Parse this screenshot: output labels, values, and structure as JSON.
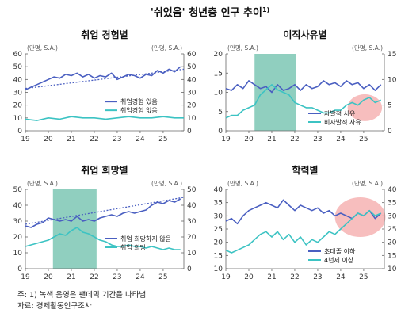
{
  "figure": {
    "title": "'쉬었음' 청년층 인구 추이",
    "title_sup": "1)",
    "notes": [
      "주: 1) 녹색 음영은 팬데믹 기간을 나타냄",
      "자료: 경제활동인구조사"
    ]
  },
  "colors": {
    "series_primary": "#4a5fc1",
    "series_secondary": "#3cc3c3",
    "trend": "#4a5fc1",
    "shade": "#7cc7b4",
    "highlight": "#f4a3a3"
  },
  "chart_data": [
    {
      "type": "line",
      "title": "취업 경험별",
      "unit_left": "(만명, S.A.)",
      "unit_right": "(만명, S.A.)",
      "x_ticks": [
        "19",
        "20",
        "21",
        "22",
        "23",
        "24",
        "25"
      ],
      "xlim": [
        2019,
        2025.9
      ],
      "ylim": [
        0,
        60
      ],
      "yticks": [
        0,
        10,
        20,
        30,
        40,
        50,
        60
      ],
      "y2lim": [
        0,
        60
      ],
      "y2ticks": [
        0,
        10,
        20,
        30,
        40,
        50,
        60
      ],
      "trend": {
        "series": 0,
        "from": [
          2019.0,
          33
        ],
        "to": [
          2025.9,
          48
        ]
      },
      "legend": "center-right",
      "series": [
        {
          "name": "취업경험 있음",
          "axis": "left",
          "color": "#4a5fc1",
          "x": [
            2019.0,
            2019.25,
            2019.5,
            2019.75,
            2020.0,
            2020.25,
            2020.5,
            2020.75,
            2021.0,
            2021.25,
            2021.5,
            2021.75,
            2022.0,
            2022.25,
            2022.5,
            2022.75,
            2023.0,
            2023.25,
            2023.5,
            2023.75,
            2024.0,
            2024.25,
            2024.5,
            2024.75,
            2025.0,
            2025.25,
            2025.5,
            2025.75
          ],
          "y": [
            32,
            34,
            36,
            38,
            40,
            42,
            41,
            44,
            43,
            45,
            42,
            44,
            41,
            43,
            42,
            45,
            40,
            42,
            44,
            43,
            41,
            44,
            43,
            47,
            45,
            48,
            46,
            50
          ]
        },
        {
          "name": "취업경험 없음",
          "axis": "left",
          "color": "#3cc3c3",
          "x": [
            2019.0,
            2019.5,
            2020.0,
            2020.5,
            2021.0,
            2021.5,
            2022.0,
            2022.5,
            2023.0,
            2023.5,
            2024.0,
            2024.5,
            2025.0,
            2025.5,
            2025.9
          ],
          "y": [
            9,
            8,
            10,
            9,
            11,
            10,
            10,
            9,
            10,
            11,
            10,
            10,
            11,
            10,
            10
          ]
        }
      ]
    },
    {
      "type": "line",
      "title": "이직사유별",
      "unit_left": "(만명, S.A.)",
      "unit_right": "(만명, S.A.)",
      "x_ticks": [
        "19",
        "20",
        "21",
        "22",
        "23",
        "24",
        "25"
      ],
      "xlim": [
        2019,
        2025.9
      ],
      "ylim": [
        0,
        20
      ],
      "yticks": [
        0,
        5,
        10,
        15,
        20
      ],
      "y2lim": [
        0,
        15
      ],
      "y2ticks": [
        0,
        5,
        10,
        15
      ],
      "shade": [
        2020.25,
        2022.05
      ],
      "highlight": {
        "center": [
          2025.05,
          6.0
        ],
        "rx_years": 0.75,
        "ry_units": 3.5
      },
      "legend": "bottom-right",
      "series": [
        {
          "name": "자발적 사유",
          "axis": "left",
          "color": "#4a5fc1",
          "x": [
            2019.0,
            2019.25,
            2019.5,
            2019.75,
            2020.0,
            2020.25,
            2020.5,
            2020.75,
            2021.0,
            2021.25,
            2021.5,
            2021.75,
            2022.0,
            2022.25,
            2022.5,
            2022.75,
            2023.0,
            2023.25,
            2023.5,
            2023.75,
            2024.0,
            2024.25,
            2024.5,
            2024.75,
            2025.0,
            2025.25,
            2025.5,
            2025.75
          ],
          "y": [
            11,
            10.5,
            12,
            11,
            13,
            12,
            11,
            11.5,
            10,
            12,
            10.5,
            11,
            12,
            10.5,
            12,
            11,
            11.5,
            13,
            12,
            12.5,
            11.5,
            13,
            12,
            12.5,
            11,
            12,
            10.5,
            12
          ]
        },
        {
          "name": "비자발적 사유",
          "axis": "right",
          "color": "#3cc3c3",
          "x": [
            2019.0,
            2019.25,
            2019.5,
            2019.75,
            2020.0,
            2020.25,
            2020.5,
            2020.75,
            2021.0,
            2021.25,
            2021.5,
            2021.75,
            2022.0,
            2022.25,
            2022.5,
            2022.75,
            2023.0,
            2023.25,
            2023.5,
            2023.75,
            2024.0,
            2024.25,
            2024.5,
            2024.75,
            2025.0,
            2025.25,
            2025.5,
            2025.75
          ],
          "y": [
            2.5,
            3,
            3,
            4,
            4.5,
            5,
            7,
            8,
            9,
            8,
            7.5,
            7,
            5.5,
            5,
            4.5,
            4.5,
            4,
            3.5,
            3.5,
            4,
            4,
            5,
            5.5,
            5,
            6,
            6.5,
            5.5,
            6
          ]
        }
      ]
    },
    {
      "type": "line",
      "title": "취업 희망별",
      "unit_left": "(만명, S.A.)",
      "unit_right": "(만명, S.A.)",
      "x_ticks": [
        "19",
        "20",
        "21",
        "22",
        "23",
        "24",
        "25"
      ],
      "xlim": [
        2019,
        2025.9
      ],
      "ylim": [
        0,
        50
      ],
      "yticks": [
        0,
        10,
        20,
        30,
        40,
        50
      ],
      "y2lim": [
        0,
        50
      ],
      "y2ticks": [
        0,
        10,
        20,
        30,
        40,
        50
      ],
      "shade": [
        2020.2,
        2022.1
      ],
      "trend": {
        "series": 0,
        "from": [
          2019.0,
          28
        ],
        "to": [
          2025.9,
          45
        ]
      },
      "legend": "center-right",
      "series": [
        {
          "name": "취업 희망하지 않음",
          "axis": "left",
          "color": "#4a5fc1",
          "x": [
            2019.0,
            2019.25,
            2019.5,
            2019.75,
            2020.0,
            2020.25,
            2020.5,
            2020.75,
            2021.0,
            2021.25,
            2021.5,
            2021.75,
            2022.0,
            2022.25,
            2022.5,
            2022.75,
            2023.0,
            2023.25,
            2023.5,
            2023.75,
            2024.0,
            2024.25,
            2024.5,
            2024.75,
            2025.0,
            2025.25,
            2025.5,
            2025.75
          ],
          "y": [
            27,
            26,
            28,
            29,
            32,
            31,
            30,
            31,
            30,
            33,
            30,
            31,
            30,
            32,
            33,
            34,
            33,
            35,
            36,
            35,
            36,
            37,
            40,
            42,
            41,
            43,
            42,
            44
          ]
        },
        {
          "name": "취업 희망",
          "axis": "left",
          "color": "#3cc3c3",
          "x": [
            2019.0,
            2019.25,
            2019.5,
            2019.75,
            2020.0,
            2020.25,
            2020.5,
            2020.75,
            2021.0,
            2021.25,
            2021.5,
            2021.75,
            2022.0,
            2022.25,
            2022.5,
            2022.75,
            2023.0,
            2023.25,
            2023.5,
            2023.75,
            2024.0,
            2024.25,
            2024.5,
            2024.75,
            2025.0,
            2025.25,
            2025.5,
            2025.75
          ],
          "y": [
            14,
            15,
            16,
            17,
            18,
            20,
            22,
            21,
            24,
            26,
            23,
            22,
            20,
            18,
            17,
            15,
            14,
            14,
            15,
            14,
            14,
            13,
            14,
            13,
            12,
            13,
            12,
            12
          ]
        }
      ]
    },
    {
      "type": "line",
      "title": "학력별",
      "unit_left": "(만명, S.A.)",
      "unit_right": "(만명, S.A.)",
      "x_ticks": [
        "19",
        "20",
        "21",
        "22",
        "23",
        "24",
        "25"
      ],
      "xlim": [
        2019,
        2025.9
      ],
      "ylim": [
        10,
        40
      ],
      "yticks": [
        10,
        15,
        20,
        25,
        30,
        35,
        40
      ],
      "y2lim": [
        10,
        40
      ],
      "y2ticks": [
        10,
        15,
        20,
        25,
        30,
        35,
        40
      ],
      "highlight": {
        "center": [
          2024.85,
          29.5
        ],
        "rx_years": 1.1,
        "ry_units": 7.5
      },
      "legend": "bottom-right",
      "series": [
        {
          "name": "초대졸 이하",
          "axis": "left",
          "color": "#4a5fc1",
          "x": [
            2019.0,
            2019.25,
            2019.5,
            2019.75,
            2020.0,
            2020.25,
            2020.5,
            2020.75,
            2021.0,
            2021.25,
            2021.5,
            2021.75,
            2022.0,
            2022.25,
            2022.5,
            2022.75,
            2023.0,
            2023.25,
            2023.5,
            2023.75,
            2024.0,
            2024.25,
            2024.5,
            2024.75,
            2025.0,
            2025.25,
            2025.5,
            2025.75
          ],
          "y": [
            28,
            29,
            27,
            30,
            32,
            33,
            34,
            35,
            34,
            33,
            36,
            34,
            32,
            34,
            33,
            32,
            33,
            31,
            32,
            30,
            31,
            30,
            29,
            31,
            30,
            32,
            29,
            31
          ]
        },
        {
          "name": "4년제 이상",
          "axis": "right",
          "color": "#3cc3c3",
          "x": [
            2019.0,
            2019.25,
            2019.5,
            2019.75,
            2020.0,
            2020.25,
            2020.5,
            2020.75,
            2021.0,
            2021.25,
            2021.5,
            2021.75,
            2022.0,
            2022.25,
            2022.5,
            2022.75,
            2023.0,
            2023.25,
            2023.5,
            2023.75,
            2024.0,
            2024.25,
            2024.5,
            2024.75,
            2025.0,
            2025.25,
            2025.5,
            2025.75
          ],
          "y": [
            17,
            16,
            17,
            18,
            19,
            21,
            23,
            24,
            22,
            24,
            21,
            23,
            20,
            22,
            19,
            21,
            20,
            22,
            24,
            23,
            25,
            27,
            29,
            31,
            30,
            32,
            30,
            31
          ]
        }
      ]
    }
  ]
}
